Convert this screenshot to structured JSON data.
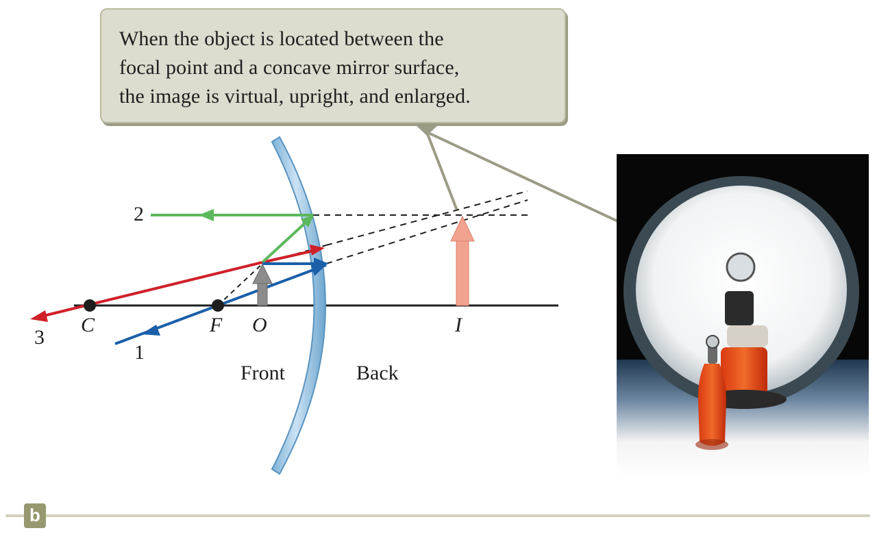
{
  "caption": {
    "line1": "When the object is located between the",
    "line2": "focal point and a concave mirror surface,",
    "line3": "the image is virtual, upright, and enlarged."
  },
  "labels": {
    "C": "C",
    "F": "F",
    "O": "O",
    "I": "I",
    "front": "Front",
    "back": "Back",
    "ray1": "1",
    "ray2": "2",
    "ray3": "3"
  },
  "panel_label": "b",
  "colors": {
    "ray1": "#1a5fa8",
    "ray2": "#5cb85c",
    "ray3": "#d0202a",
    "object_arrow": "#8c8c8c",
    "image_arrow": "#f2a38f",
    "mirror": "#a9cde6",
    "callout": "#dcdccf",
    "pointer": "#9c9c86"
  },
  "icons": {
    "photo": "concave-mirror-photo"
  }
}
